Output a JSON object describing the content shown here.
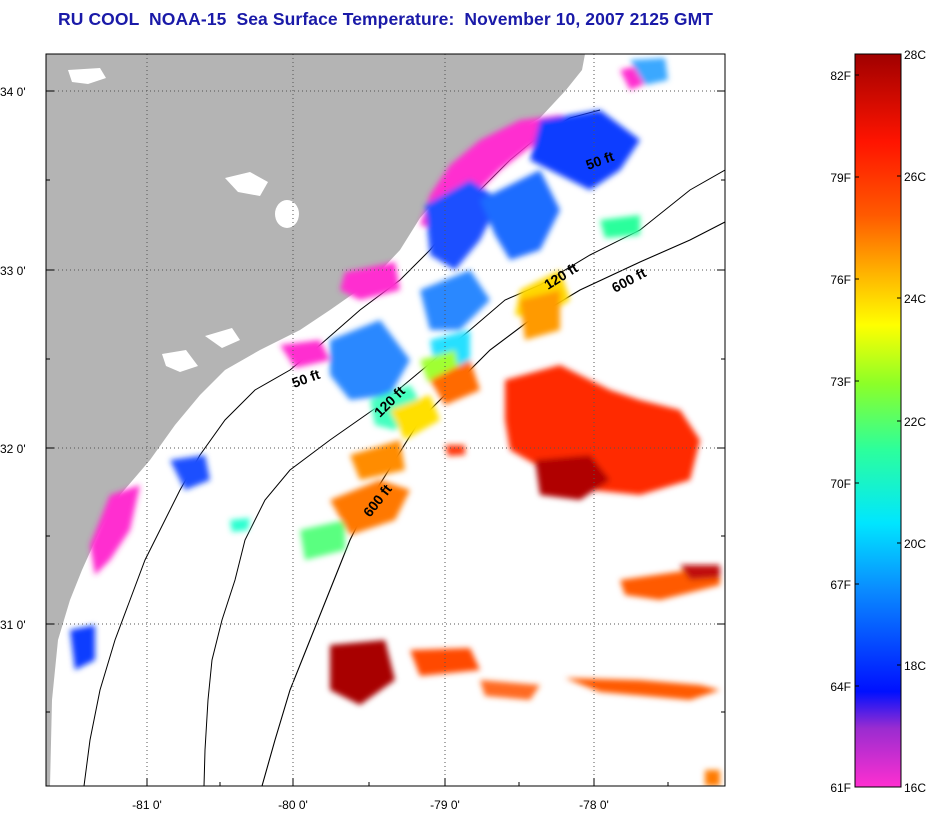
{
  "title": "RU COOL  NOAA-15  Sea Surface Temperature:  November 10, 2007 2125 GMT",
  "map": {
    "lat_labels": [
      "34 0'",
      "33 0'",
      "32 0'",
      "31 0'"
    ],
    "lon_labels": [
      "-81 0'",
      "-80 0'",
      "-79 0'",
      "-78 0'"
    ],
    "isobaths": [
      "50 ft",
      "50 ft",
      "120 ft",
      "120 ft",
      "600 ft",
      "600 ft"
    ]
  },
  "colorbar": {
    "celsius_labels": [
      "28C",
      "26C",
      "24C",
      "22C",
      "20C",
      "18C",
      "16C"
    ],
    "fahrenheit_labels": [
      "82F",
      "79F",
      "76F",
      "73F",
      "70F",
      "67F",
      "64F",
      "61F"
    ]
  },
  "colors": {
    "land": "#b4b4b4",
    "title": "#1a1aa8",
    "scale": [
      "#ff2fd0",
      "#9a2cd0",
      "#0010ff",
      "#0a8cff",
      "#00e6ff",
      "#2cff9c",
      "#8cff28",
      "#ffff00",
      "#ffb400",
      "#ff5a00",
      "#ff1400",
      "#a00000"
    ]
  }
}
